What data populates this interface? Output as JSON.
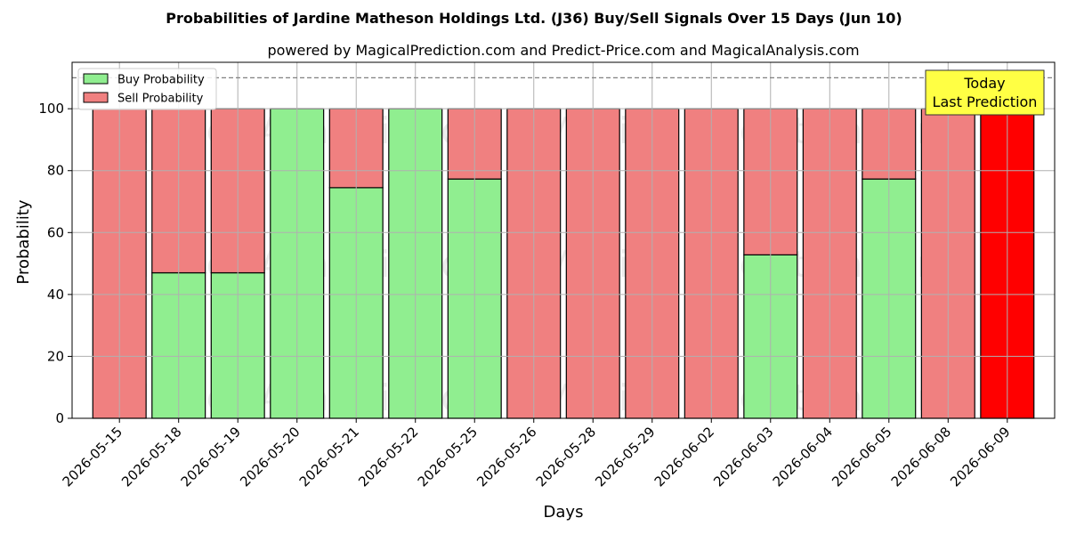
{
  "chart_data": {
    "type": "bar",
    "stacked": true,
    "title": "Probabilities of Jardine Matheson Holdings Ltd. (J36) Buy/Sell Signals Over 15 Days (Jun 10)",
    "subtitle": "powered by MagicalPrediction.com and Predict-Price.com and MagicalAnalysis.com",
    "xlabel": "Days",
    "ylabel": "Probability",
    "ylim": [
      0,
      115
    ],
    "yticks": [
      0,
      20,
      40,
      60,
      80,
      100
    ],
    "reference_line": 110,
    "grid": true,
    "legend_position": "top-left",
    "categories": [
      "2026-05-15",
      "2026-05-18",
      "2026-05-19",
      "2026-05-20",
      "2026-05-21",
      "2026-05-22",
      "2026-05-25",
      "2026-05-26",
      "2026-05-28",
      "2026-05-29",
      "2026-06-02",
      "2026-06-03",
      "2026-06-04",
      "2026-06-05",
      "2026-06-08",
      "2026-06-09"
    ],
    "series": [
      {
        "name": "Buy Probability",
        "color": "#90ee90",
        "values": [
          0,
          47,
          47,
          100,
          74.5,
          100,
          77.3,
          0,
          0,
          0,
          0,
          52.8,
          0,
          77.3,
          0,
          0
        ]
      },
      {
        "name": "Sell Probability",
        "color": "#f08080",
        "values": [
          100,
          53,
          53,
          0,
          25.5,
          0,
          22.7,
          100,
          100,
          100,
          100,
          47.2,
          100,
          22.7,
          100,
          100
        ]
      }
    ],
    "highlight": {
      "index": 15,
      "color": "#ff0000"
    },
    "annotation": {
      "lines": [
        "Today",
        "Last Prediction"
      ],
      "background": "#ffff44"
    },
    "watermarks": [
      "MagicalAnalysis.com",
      "MagicalPrediction.com"
    ]
  }
}
